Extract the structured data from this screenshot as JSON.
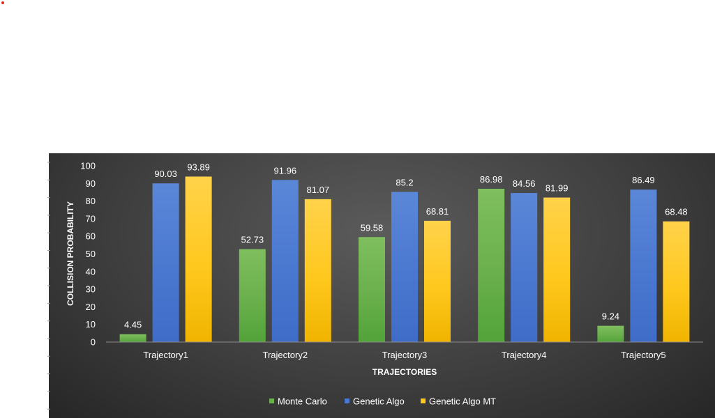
{
  "colors": {
    "marker_dot": "#e0281e",
    "series": [
      "#6ab04c",
      "#4a78d0",
      "#ffc81e"
    ],
    "series_dark": [
      "#52a339",
      "#3e6cc7",
      "#f0b400"
    ],
    "series_light": [
      "#7fbe5e",
      "#5b87d8",
      "#ffd24a"
    ]
  },
  "chart_data": {
    "type": "bar",
    "title": "",
    "xlabel": "TRAJECTORIES",
    "ylabel": "COLLISION PROBABILITY",
    "ylim": [
      0,
      100
    ],
    "yticks": [
      "0",
      "10",
      "20",
      "30",
      "40",
      "50",
      "60",
      "70",
      "80",
      "90",
      "100"
    ],
    "categories": [
      "Trajectory1",
      "Trajectory2",
      "Trajectory3",
      "Trajectory4",
      "Trajectory5"
    ],
    "series": [
      {
        "name": "Monte Carlo",
        "values": [
          4.45,
          52.73,
          59.58,
          86.98,
          9.24
        ],
        "labels": [
          "4.45",
          "52.73",
          "59.58",
          "86.98",
          "9.24"
        ]
      },
      {
        "name": "Genetic Algo",
        "values": [
          90.03,
          91.96,
          85.2,
          84.56,
          86.49
        ],
        "labels": [
          "90.03",
          "91.96",
          "85.2",
          "84.56",
          "86.49"
        ]
      },
      {
        "name": "Genetic Algo MT",
        "values": [
          93.89,
          81.07,
          68.81,
          81.99,
          68.48
        ],
        "labels": [
          "93.89",
          "81.07",
          "68.81",
          "81.99",
          "68.48"
        ]
      }
    ],
    "grid": false,
    "legend_position": "bottom"
  }
}
